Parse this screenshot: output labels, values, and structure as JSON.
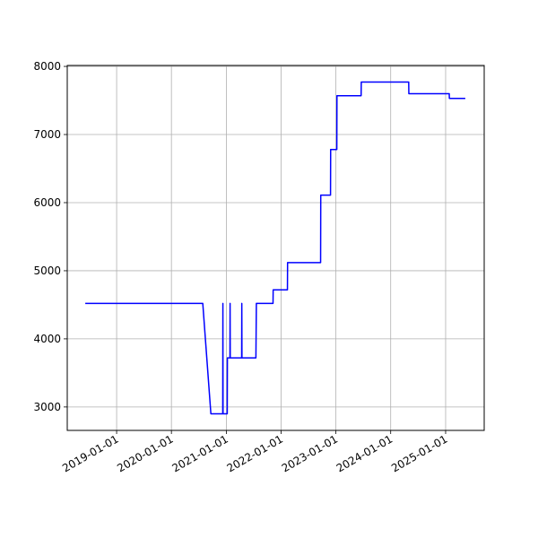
{
  "chart_data": {
    "type": "line",
    "grid": true,
    "xlim": [
      "2018-02-06",
      "2025-09-15"
    ],
    "xticks": [
      "2019-01-01",
      "2020-01-01",
      "2021-01-01",
      "2022-01-01",
      "2023-01-01",
      "2024-01-01",
      "2025-01-01"
    ],
    "ylim": [
      2656,
      8014
    ],
    "yticks": [
      3000,
      4000,
      5000,
      6000,
      7000,
      8000
    ],
    "series": [
      {
        "color": "#0000ff",
        "x": [
          "2018-06-06",
          "2020-07-28",
          "2020-09-20",
          "2020-12-08",
          "2020-12-09",
          "2020-12-10",
          "2021-01-07",
          "2021-01-08",
          "2021-01-25",
          "2021-01-26",
          "2021-01-27",
          "2021-04-13",
          "2021-04-14",
          "2021-04-15",
          "2021-07-17",
          "2021-07-20",
          "2021-11-08",
          "2021-11-09",
          "2022-02-12",
          "2022-02-13",
          "2022-09-21",
          "2022-09-22",
          "2022-11-26",
          "2022-11-27",
          "2023-01-07",
          "2023-01-08",
          "2023-06-18",
          "2023-06-19",
          "2024-04-30",
          "2024-05-01",
          "2025-01-25",
          "2025-01-26",
          "2025-05-12"
        ],
        "values": [
          4520,
          4520,
          2900,
          2900,
          4520,
          2900,
          2900,
          3720,
          3720,
          4520,
          3720,
          3720,
          4520,
          3720,
          3720,
          4520,
          4520,
          4720,
          4720,
          5120,
          5120,
          6110,
          6110,
          6780,
          6780,
          7570,
          7570,
          7770,
          7770,
          7600,
          7600,
          7530,
          7530
        ]
      }
    ]
  }
}
